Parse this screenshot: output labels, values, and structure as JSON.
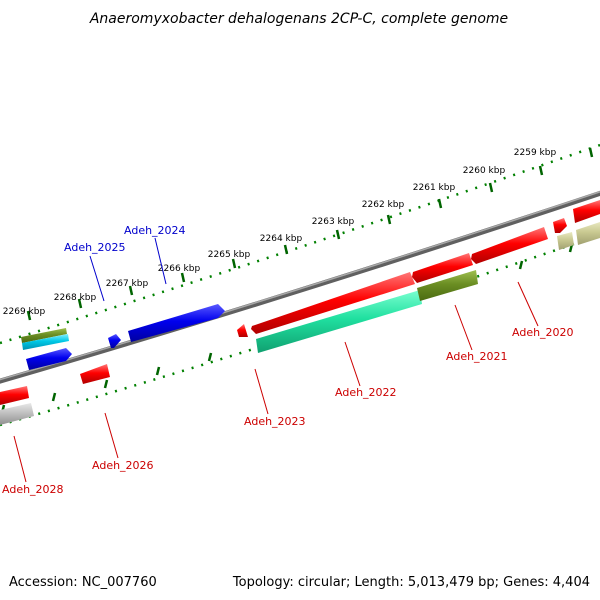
{
  "title": "Anaeromyxobacter dehalogenans 2CP-C, complete genome",
  "footer": {
    "accession": "Accession: NC_007760",
    "topology": "Topology: circular; Length: 5,013,479 bp; Genes: 4,404"
  },
  "ticks": [
    "2259 kbp",
    "2260 kbp",
    "2261 kbp",
    "2262 kbp",
    "2263 kbp",
    "2264 kbp",
    "2265 kbp",
    "2266 kbp",
    "2267 kbp",
    "2268 kbp",
    "2269 kbp"
  ],
  "genes": {
    "g2020": "Adeh_2020",
    "g2021": "Adeh_2021",
    "g2022": "Adeh_2022",
    "g2023": "Adeh_2023",
    "g2024": "Adeh_2024",
    "g2025": "Adeh_2025",
    "g2026": "Adeh_2026",
    "g2028": "Adeh_2028"
  },
  "colors": {
    "forward_label": "#0000cc",
    "reverse_label": "#cc0000",
    "backbone": "#808080",
    "tick": "#006400",
    "gene_red": "#ff0000",
    "gene_blue": "#0000ee",
    "gene_teal": "#20e0a0",
    "gene_olive": "#6b8e23",
    "gene_khaki": "#c8c890",
    "gene_gray": "#c0c0c0",
    "gene_cyan": "#00c8e6"
  }
}
